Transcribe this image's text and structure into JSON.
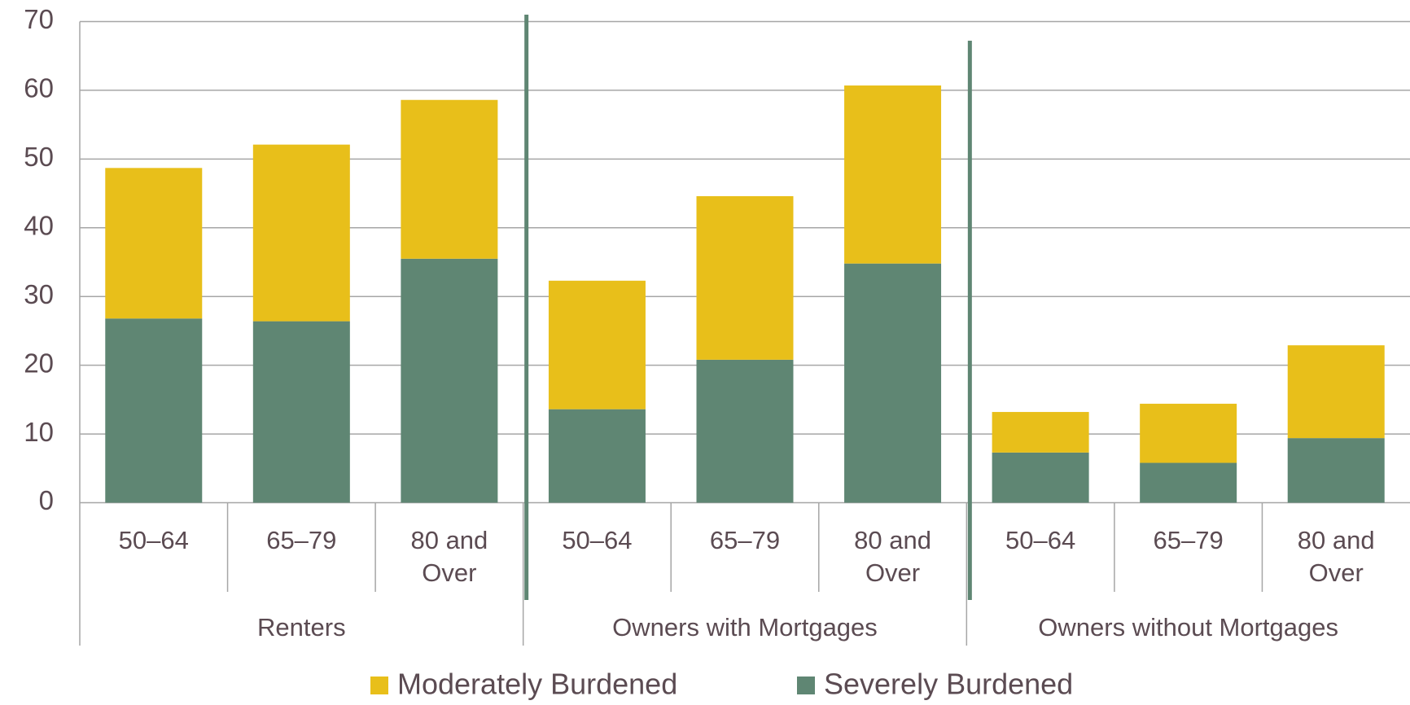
{
  "chart_data": {
    "type": "bar",
    "stacked": true,
    "categories": [
      "50–64",
      "65–79",
      "80 and Over",
      "50–64",
      "65–79",
      "80 and Over",
      "50–64",
      "65–79",
      "80 and Over"
    ],
    "groups": [
      "Renters",
      "Owners with Mortgages",
      "Owners without Mortgages"
    ],
    "series": [
      {
        "name": "Moderately Burdened",
        "color": "#e8bf1a",
        "values": [
          21.9,
          25.7,
          23.1,
          18.7,
          23.8,
          25.9,
          5.9,
          8.6,
          13.5
        ]
      },
      {
        "name": "Severely Burdened",
        "color": "#5f8673",
        "values": [
          26.8,
          26.4,
          35.5,
          13.6,
          20.8,
          34.8,
          7.3,
          5.8,
          9.4
        ]
      }
    ],
    "ylim": [
      0,
      70
    ],
    "yticks": [
      0,
      10,
      20,
      30,
      40,
      50,
      60,
      70
    ],
    "grid": true,
    "legend": "bottom"
  }
}
